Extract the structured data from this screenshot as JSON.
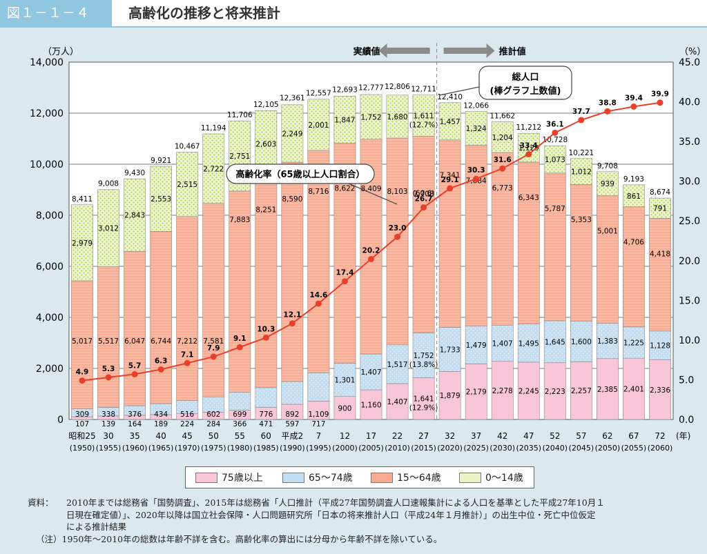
{
  "header": {
    "figure_number": "図１－１－４",
    "title": "高齢化の推移と将来推計"
  },
  "chart_data": {
    "type": "bar",
    "stacked": true,
    "left_axis_label": "（万人）",
    "right_axis_label": "（%）",
    "x_axis_unit": "(年)",
    "left_ylim": [
      0,
      14000
    ],
    "left_ticks": [
      "0",
      "2,000",
      "4,000",
      "6,000",
      "8,000",
      "10,000",
      "12,000",
      "14,000"
    ],
    "right_ylim": [
      0,
      45
    ],
    "right_ticks": [
      "0.0",
      "5.0",
      "10.0",
      "15.0",
      "20.0",
      "25.0",
      "30.0",
      "35.0",
      "40.0",
      "45.0"
    ],
    "categories": [
      "昭和25",
      "30",
      "35",
      "40",
      "45",
      "50",
      "55",
      "60",
      "平成2",
      "7",
      "12",
      "17",
      "22",
      "27",
      "32",
      "37",
      "42",
      "47",
      "52",
      "57",
      "62",
      "67",
      "72"
    ],
    "years": [
      "(1950)",
      "(1955)",
      "(1960)",
      "(1965)",
      "(1970)",
      "(1975)",
      "(1980)",
      "(1985)",
      "(1990)",
      "(1995)",
      "(2000)",
      "(2005)",
      "(2010)",
      "(2015)",
      "(2020)",
      "(2025)",
      "(2030)",
      "(2035)",
      "(2040)",
      "(2045)",
      "(2050)",
      "(2055)",
      "(2060)"
    ],
    "series": [
      {
        "name": "75歳以上",
        "color": "#f8c6d8",
        "values": [
          107,
          139,
          164,
          189,
          224,
          284,
          366,
          471,
          597,
          717,
          900,
          1160,
          1407,
          1641,
          1879,
          2179,
          2278,
          2245,
          2223,
          2257,
          2385,
          2401,
          2336
        ],
        "labels": [
          "107",
          "139",
          "164",
          "189",
          "224",
          "284",
          "366",
          "471",
          "597",
          "717",
          "900",
          "1,160",
          "1,407",
          "1,641",
          "1,879",
          "2,179",
          "2,278",
          "2,245",
          "2,223",
          "2,257",
          "2,385",
          "2,401",
          "2,336"
        ]
      },
      {
        "name": "65～74歳",
        "color": "#c4ddf1",
        "values": [
          309,
          338,
          376,
          434,
          516,
          602,
          699,
          776,
          892,
          1109,
          1301,
          1407,
          1517,
          1752,
          1733,
          1479,
          1407,
          1495,
          1645,
          1600,
          1383,
          1225,
          1128
        ],
        "labels": [
          "309",
          "338",
          "376",
          "434",
          "516",
          "602",
          "699",
          "776",
          "892",
          "1,109",
          "1,301",
          "1,407",
          "1,517",
          "1,752",
          "1,733",
          "1,479",
          "1,407",
          "1,495",
          "1,645",
          "1,600",
          "1,383",
          "1,225",
          "1,128"
        ]
      },
      {
        "name": "15～64歳",
        "color": "#f7ac93",
        "values": [
          5017,
          5517,
          6047,
          6744,
          7212,
          7581,
          7883,
          8251,
          8590,
          8716,
          8622,
          8409,
          8103,
          7708,
          7341,
          7084,
          6773,
          6343,
          5787,
          5353,
          5001,
          4706,
          4418
        ],
        "labels": [
          "5,017",
          "5,517",
          "6,047",
          "6,744",
          "7,212",
          "7,581",
          "7,883",
          "8,251",
          "8,590",
          "8,716",
          "8,622",
          "8,409",
          "8,103",
          "7,708",
          "7,341",
          "7,084",
          "6,773",
          "6,343",
          "5,787",
          "5,353",
          "5,001",
          "4,706",
          "4,418"
        ]
      },
      {
        "name": "0～14歳",
        "color": "#edf3c8",
        "values": [
          2979,
          3012,
          2843,
          2553,
          2515,
          2722,
          2751,
          2603,
          2249,
          2001,
          1847,
          1752,
          1680,
          1611,
          1457,
          1324,
          1204,
          1129,
          1073,
          1012,
          939,
          861,
          791
        ],
        "labels": [
          "2,979",
          "3,012",
          "2,843",
          "2,553",
          "2,515",
          "2,722",
          "2,751",
          "2,603",
          "2,249",
          "2,001",
          "1,847",
          "1,752",
          "1,680",
          "1,611",
          "1,457",
          "1,324",
          "1,204",
          "1,129",
          "1,073",
          "1,012",
          "939",
          "861",
          "791"
        ]
      }
    ],
    "totals": [
      8411,
      9008,
      9430,
      9921,
      10467,
      11194,
      11706,
      12105,
      12361,
      12557,
      12693,
      12777,
      12806,
      12711,
      12410,
      12066,
      11662,
      11212,
      10728,
      10221,
      9708,
      9193,
      8674
    ],
    "total_labels": [
      "8,411",
      "9,008",
      "9,430",
      "9,921",
      "10,467",
      "11,194",
      "11,706",
      "12,105",
      "12,361",
      "12,557",
      "12,693",
      "12,777",
      "12,806",
      "12,711",
      "12,410",
      "12,066",
      "11,662",
      "11,212",
      "10,728",
      "10,221",
      "9,708",
      "9,193",
      "8,674"
    ],
    "aging_rate": {
      "name": "高齢化率（65歳以上人口割合）",
      "color": "#e8402a",
      "values": [
        4.9,
        5.3,
        5.7,
        6.3,
        7.1,
        7.9,
        9.1,
        10.3,
        12.1,
        14.6,
        17.4,
        20.2,
        23.0,
        26.7,
        29.1,
        30.3,
        31.6,
        33.4,
        36.1,
        37.7,
        38.8,
        39.4,
        39.9
      ],
      "labels": [
        "4.9",
        "5.3",
        "5.7",
        "6.3",
        "7.1",
        "7.9",
        "9.1",
        "10.3",
        "12.1",
        "14.6",
        "17.4",
        "20.2",
        "23.0",
        "26.7",
        "29.1",
        "30.3",
        "31.6",
        "33.4",
        "36.1",
        "37.7",
        "38.8",
        "39.4",
        "39.9"
      ]
    },
    "annotations_2015": {
      "children_pct": "(12.7%)",
      "working_pct": "(60.6)",
      "young_old_pct": "(13.8%)",
      "old_old_pct": "(12.9%)"
    },
    "actual_label": "実績値",
    "projected_label": "推計値",
    "callout_total": [
      "総人口",
      "(棒グラフ上数値)"
    ],
    "callout_rate": "高齢化率（65歳以上人口割合）"
  },
  "legend": [
    {
      "label": "75歳以上"
    },
    {
      "label": "65～74歳"
    },
    {
      "label": "15～64歳"
    },
    {
      "label": "0～14歳"
    }
  ],
  "notes": {
    "prefix": "資料：",
    "line1": "2010年までは総務省「国勢調査」、2015年は総務省「人口推計（平成27年国勢調査人口速報集計による人口を基準とした平成27年10月１",
    "line2": "日現在確定値）」、2020年以降は国立社会保障・人口問題研究所「日本の将来推計人口（平成24年１月推計）」の出生中位・死亡中位仮定",
    "line3": "による推計結果",
    "note": "（注）1950年～2010年の総数は年齢不詳を含む。高齢化率の算出には分母から年齢不詳を除いている。"
  }
}
